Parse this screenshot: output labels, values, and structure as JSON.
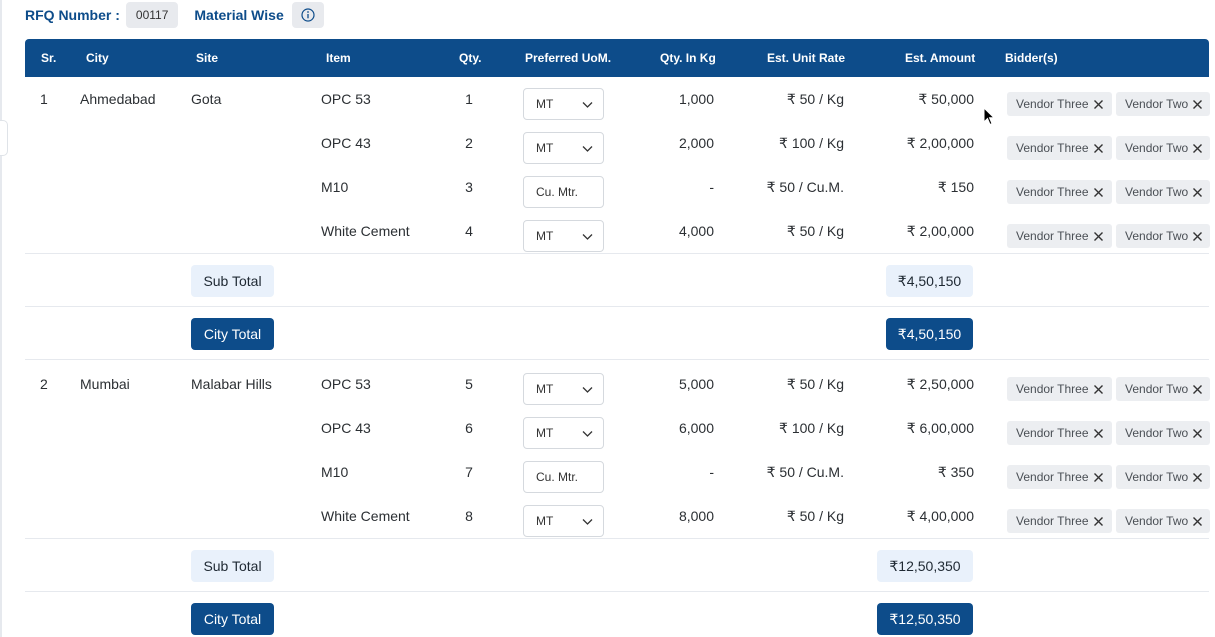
{
  "header": {
    "rfq_label": "RFQ Number :",
    "rfq_number": "00117",
    "mode_label": "Material Wise"
  },
  "columns": [
    "Sr.",
    "City",
    "Site",
    "Item",
    "Qty.",
    "Preferred UoM.",
    "Qty. In Kg",
    "Est. Unit Rate",
    "Est. Amount",
    "Bidder(s)"
  ],
  "cities": [
    {
      "sr": "1",
      "city": "Ahmedabad",
      "site": "Gota",
      "rows": [
        {
          "item": "OPC 53",
          "qty": "1",
          "uom": "MT",
          "uom_type": "select",
          "qty_kg": "1,000",
          "unit_rate": "₹ 50 / Kg",
          "amount": "₹ 50,000",
          "bidders": [
            "Vendor Three",
            "Vendor Two"
          ]
        },
        {
          "item": "OPC 43",
          "qty": "2",
          "uom": "MT",
          "uom_type": "select",
          "qty_kg": "2,000",
          "unit_rate": "₹ 100 / Kg",
          "amount": "₹ 2,00,000",
          "bidders": [
            "Vendor Three",
            "Vendor Two"
          ]
        },
        {
          "item": "M10",
          "qty": "3",
          "uom": "Cu. Mtr.",
          "uom_type": "text",
          "qty_kg": "-",
          "unit_rate": "₹ 50 / Cu.M.",
          "amount": "₹ 150",
          "bidders": [
            "Vendor Three",
            "Vendor Two"
          ]
        },
        {
          "item": "White Cement",
          "qty": "4",
          "uom": "MT",
          "uom_type": "select",
          "qty_kg": "4,000",
          "unit_rate": "₹ 50 / Kg",
          "amount": "₹ 2,00,000",
          "bidders": [
            "Vendor Three",
            "Vendor Two"
          ]
        }
      ],
      "sub_total_label": "Sub Total",
      "sub_total": "₹4,50,150",
      "city_total_label": "City Total",
      "city_total": "₹4,50,150"
    },
    {
      "sr": "2",
      "city": "Mumbai",
      "site": "Malabar Hills",
      "rows": [
        {
          "item": "OPC 53",
          "qty": "5",
          "uom": "MT",
          "uom_type": "select",
          "qty_kg": "5,000",
          "unit_rate": "₹ 50 / Kg",
          "amount": "₹ 2,50,000",
          "bidders": [
            "Vendor Three",
            "Vendor Two"
          ]
        },
        {
          "item": "OPC 43",
          "qty": "6",
          "uom": "MT",
          "uom_type": "select",
          "qty_kg": "6,000",
          "unit_rate": "₹ 100 / Kg",
          "amount": "₹ 6,00,000",
          "bidders": [
            "Vendor Three",
            "Vendor Two"
          ]
        },
        {
          "item": "M10",
          "qty": "7",
          "uom": "Cu. Mtr.",
          "uom_type": "text",
          "qty_kg": "-",
          "unit_rate": "₹ 50 / Cu.M.",
          "amount": "₹ 350",
          "bidders": [
            "Vendor Three",
            "Vendor Two"
          ]
        },
        {
          "item": "White Cement",
          "qty": "8",
          "uom": "MT",
          "uom_type": "select",
          "qty_kg": "8,000",
          "unit_rate": "₹ 50 / Kg",
          "amount": "₹ 4,00,000",
          "bidders": [
            "Vendor Three",
            "Vendor Two"
          ]
        }
      ],
      "sub_total_label": "Sub Total",
      "sub_total": "₹12,50,350",
      "city_total_label": "City Total",
      "city_total": "₹12,50,350"
    }
  ],
  "colors": {
    "header_bg": "#0d4c8a",
    "subtotal_bg": "#e9f1fb",
    "chip_bg": "#eceef1"
  },
  "icons": {
    "info": "info-circle-icon",
    "dropdown": "chevron-down-icon",
    "remove": "close-icon"
  }
}
